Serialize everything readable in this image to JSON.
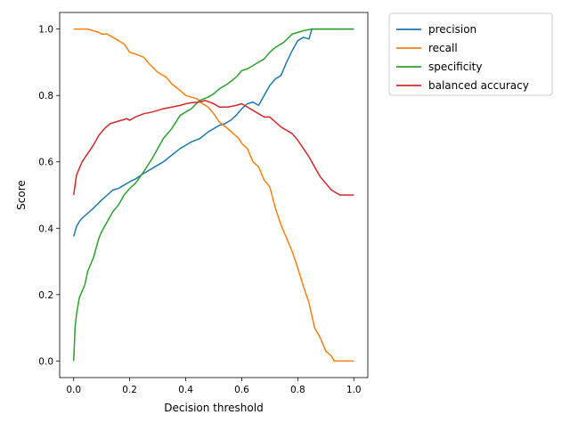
{
  "chart_data": {
    "type": "line",
    "title": "",
    "xlabel": "Decision threshold",
    "ylabel": "Score",
    "xlim": [
      -0.05,
      1.05
    ],
    "ylim": [
      -0.05,
      1.05
    ],
    "xticks": [
      0.0,
      0.2,
      0.4,
      0.6,
      0.8,
      1.0
    ],
    "xtick_labels": [
      "0.0",
      "0.2",
      "0.4",
      "0.6",
      "0.8",
      "1.0"
    ],
    "yticks": [
      0.0,
      0.2,
      0.4,
      0.6,
      0.8,
      1.0
    ],
    "ytick_labels": [
      "0.0",
      "0.2",
      "0.4",
      "0.6",
      "0.8",
      "1.0"
    ],
    "grid": false,
    "legend_position": "outside-upper-right",
    "series": [
      {
        "name": "precision",
        "color": "#1f77b4",
        "x": [
          0.0,
          0.01,
          0.02,
          0.03,
          0.05,
          0.07,
          0.1,
          0.12,
          0.14,
          0.16,
          0.18,
          0.2,
          0.22,
          0.25,
          0.28,
          0.3,
          0.32,
          0.35,
          0.38,
          0.4,
          0.42,
          0.45,
          0.48,
          0.5,
          0.52,
          0.54,
          0.56,
          0.58,
          0.6,
          0.62,
          0.64,
          0.66,
          0.68,
          0.7,
          0.72,
          0.74,
          0.76,
          0.78,
          0.8,
          0.82,
          0.84,
          0.85,
          0.88,
          0.9,
          0.95,
          1.0
        ],
        "y": [
          0.375,
          0.405,
          0.42,
          0.43,
          0.445,
          0.46,
          0.485,
          0.5,
          0.515,
          0.52,
          0.53,
          0.54,
          0.548,
          0.565,
          0.58,
          0.59,
          0.6,
          0.62,
          0.64,
          0.65,
          0.66,
          0.67,
          0.69,
          0.7,
          0.71,
          0.715,
          0.725,
          0.74,
          0.76,
          0.775,
          0.78,
          0.77,
          0.8,
          0.83,
          0.85,
          0.86,
          0.9,
          0.935,
          0.965,
          0.975,
          0.97,
          1.0,
          1.0,
          1.0,
          1.0,
          1.0
        ]
      },
      {
        "name": "recall",
        "color": "#ff7f0e",
        "x": [
          0.0,
          0.02,
          0.05,
          0.07,
          0.09,
          0.1,
          0.12,
          0.14,
          0.16,
          0.18,
          0.2,
          0.22,
          0.25,
          0.27,
          0.3,
          0.33,
          0.35,
          0.38,
          0.4,
          0.42,
          0.44,
          0.46,
          0.48,
          0.5,
          0.52,
          0.55,
          0.57,
          0.59,
          0.6,
          0.62,
          0.64,
          0.66,
          0.68,
          0.7,
          0.72,
          0.74,
          0.76,
          0.78,
          0.8,
          0.82,
          0.84,
          0.86,
          0.88,
          0.9,
          0.92,
          0.93,
          0.95,
          1.0
        ],
        "y": [
          1.0,
          1.0,
          1.0,
          0.995,
          0.99,
          0.985,
          0.985,
          0.975,
          0.965,
          0.955,
          0.93,
          0.925,
          0.915,
          0.895,
          0.87,
          0.855,
          0.835,
          0.815,
          0.8,
          0.795,
          0.79,
          0.775,
          0.765,
          0.745,
          0.72,
          0.7,
          0.685,
          0.67,
          0.655,
          0.64,
          0.6,
          0.585,
          0.545,
          0.525,
          0.46,
          0.41,
          0.37,
          0.33,
          0.28,
          0.225,
          0.175,
          0.1,
          0.07,
          0.03,
          0.015,
          0.0,
          0.0,
          0.0
        ]
      },
      {
        "name": "specificity",
        "color": "#2ca02c",
        "x": [
          0.0,
          0.005,
          0.01,
          0.02,
          0.03,
          0.04,
          0.05,
          0.06,
          0.07,
          0.08,
          0.09,
          0.1,
          0.12,
          0.14,
          0.16,
          0.18,
          0.2,
          0.22,
          0.25,
          0.28,
          0.3,
          0.32,
          0.35,
          0.38,
          0.4,
          0.42,
          0.45,
          0.48,
          0.5,
          0.52,
          0.55,
          0.58,
          0.6,
          0.62,
          0.65,
          0.68,
          0.7,
          0.72,
          0.75,
          0.78,
          0.8,
          0.82,
          0.85,
          0.9,
          0.95,
          1.0
        ],
        "y": [
          0.0,
          0.1,
          0.14,
          0.19,
          0.21,
          0.23,
          0.27,
          0.29,
          0.31,
          0.34,
          0.37,
          0.39,
          0.42,
          0.45,
          0.47,
          0.5,
          0.52,
          0.535,
          0.57,
          0.61,
          0.64,
          0.67,
          0.7,
          0.74,
          0.75,
          0.76,
          0.785,
          0.795,
          0.805,
          0.82,
          0.835,
          0.855,
          0.875,
          0.88,
          0.895,
          0.91,
          0.93,
          0.945,
          0.96,
          0.985,
          0.99,
          0.995,
          1.0,
          1.0,
          1.0,
          1.0
        ]
      },
      {
        "name": "balanced accuracy",
        "color": "#d62728",
        "x": [
          0.0,
          0.005,
          0.01,
          0.02,
          0.03,
          0.05,
          0.07,
          0.09,
          0.11,
          0.13,
          0.15,
          0.17,
          0.19,
          0.2,
          0.22,
          0.25,
          0.28,
          0.3,
          0.32,
          0.35,
          0.38,
          0.4,
          0.42,
          0.45,
          0.47,
          0.5,
          0.52,
          0.55,
          0.58,
          0.6,
          0.62,
          0.64,
          0.66,
          0.68,
          0.7,
          0.72,
          0.74,
          0.76,
          0.78,
          0.8,
          0.82,
          0.84,
          0.86,
          0.88,
          0.9,
          0.92,
          0.95,
          1.0
        ],
        "y": [
          0.5,
          0.53,
          0.56,
          0.58,
          0.6,
          0.625,
          0.65,
          0.68,
          0.7,
          0.715,
          0.72,
          0.725,
          0.73,
          0.725,
          0.735,
          0.745,
          0.75,
          0.755,
          0.76,
          0.765,
          0.77,
          0.775,
          0.778,
          0.78,
          0.785,
          0.775,
          0.765,
          0.765,
          0.77,
          0.775,
          0.765,
          0.755,
          0.745,
          0.735,
          0.735,
          0.72,
          0.705,
          0.695,
          0.685,
          0.665,
          0.64,
          0.615,
          0.585,
          0.555,
          0.535,
          0.515,
          0.5,
          0.5
        ]
      }
    ]
  }
}
